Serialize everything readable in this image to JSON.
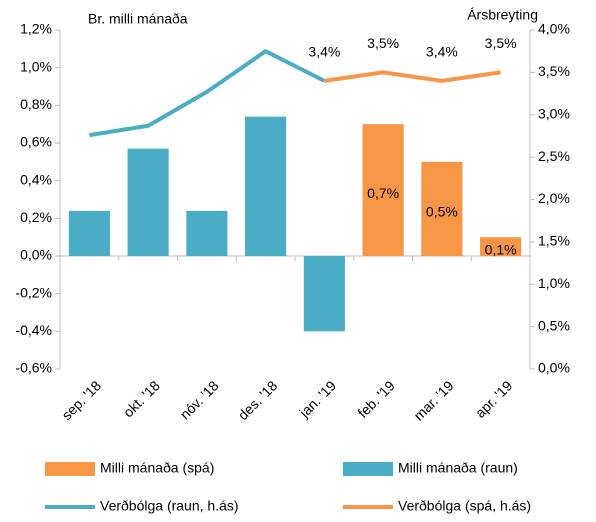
{
  "chart_data": {
    "type": "bar",
    "y_label": "Br. milli mánaða",
    "y2_label": "Ársbreyting",
    "categories": [
      "sep. '18",
      "okt. '18",
      "nóv. '18",
      "des. '18",
      "jan. '19",
      "feb. '19",
      "mar. '19",
      "apr. '19"
    ],
    "series": [
      {
        "name": "Milli mánaða (spá)",
        "type": "bar",
        "color": "#f79646",
        "values": [
          null,
          null,
          null,
          null,
          null,
          0.7,
          0.5,
          0.1
        ],
        "value_labels": [
          null,
          null,
          null,
          null,
          null,
          "0,7%",
          "0,5%",
          "0,1%"
        ]
      },
      {
        "name": "Milli mánaða (raun)",
        "type": "bar",
        "color": "#4bacc6",
        "values": [
          0.24,
          0.57,
          0.24,
          0.74,
          -0.4,
          null,
          null,
          null
        ]
      },
      {
        "name": "Verðbólga  (raun, h.ás)",
        "type": "line",
        "axis": "y2",
        "color": "#4bacc6",
        "values": [
          2.76,
          2.87,
          3.27,
          3.75,
          3.4,
          null,
          null,
          null
        ]
      },
      {
        "name": "Verðbólga (spá, h.ás)",
        "type": "line",
        "axis": "y2",
        "color": "#f79646",
        "values": [
          null,
          null,
          null,
          null,
          3.4,
          3.5,
          3.4,
          3.5
        ],
        "value_labels": [
          null,
          null,
          null,
          null,
          "3,4%",
          "3,5%",
          "3,4%",
          "3,5%"
        ]
      }
    ],
    "ylim": [
      -0.6,
      1.2
    ],
    "yticks": [
      {
        "value": -0.6,
        "label": "-0,6%"
      },
      {
        "value": -0.4,
        "label": "-0,4%"
      },
      {
        "value": -0.2,
        "label": "-0,2%"
      },
      {
        "value": 0,
        "label": "0,0%"
      },
      {
        "value": 0.2,
        "label": "0,2%"
      },
      {
        "value": 0.4,
        "label": "0,4%"
      },
      {
        "value": 0.6,
        "label": "0,6%"
      },
      {
        "value": 0.8,
        "label": "0,8%"
      },
      {
        "value": 1.0,
        "label": "1,0%"
      },
      {
        "value": 1.2,
        "label": "1,2%"
      }
    ],
    "y2lim": [
      0,
      4
    ],
    "y2ticks": [
      {
        "value": 0,
        "label": "0,0%"
      },
      {
        "value": 0.5,
        "label": "0,5%"
      },
      {
        "value": 1.0,
        "label": "1,0%"
      },
      {
        "value": 1.5,
        "label": "1,5%"
      },
      {
        "value": 2.0,
        "label": "2,0%"
      },
      {
        "value": 2.5,
        "label": "2,5%"
      },
      {
        "value": 3.0,
        "label": "3,0%"
      },
      {
        "value": 3.5,
        "label": "3,5%"
      },
      {
        "value": 4.0,
        "label": "4,0%"
      }
    ],
    "legend": "bottom"
  }
}
